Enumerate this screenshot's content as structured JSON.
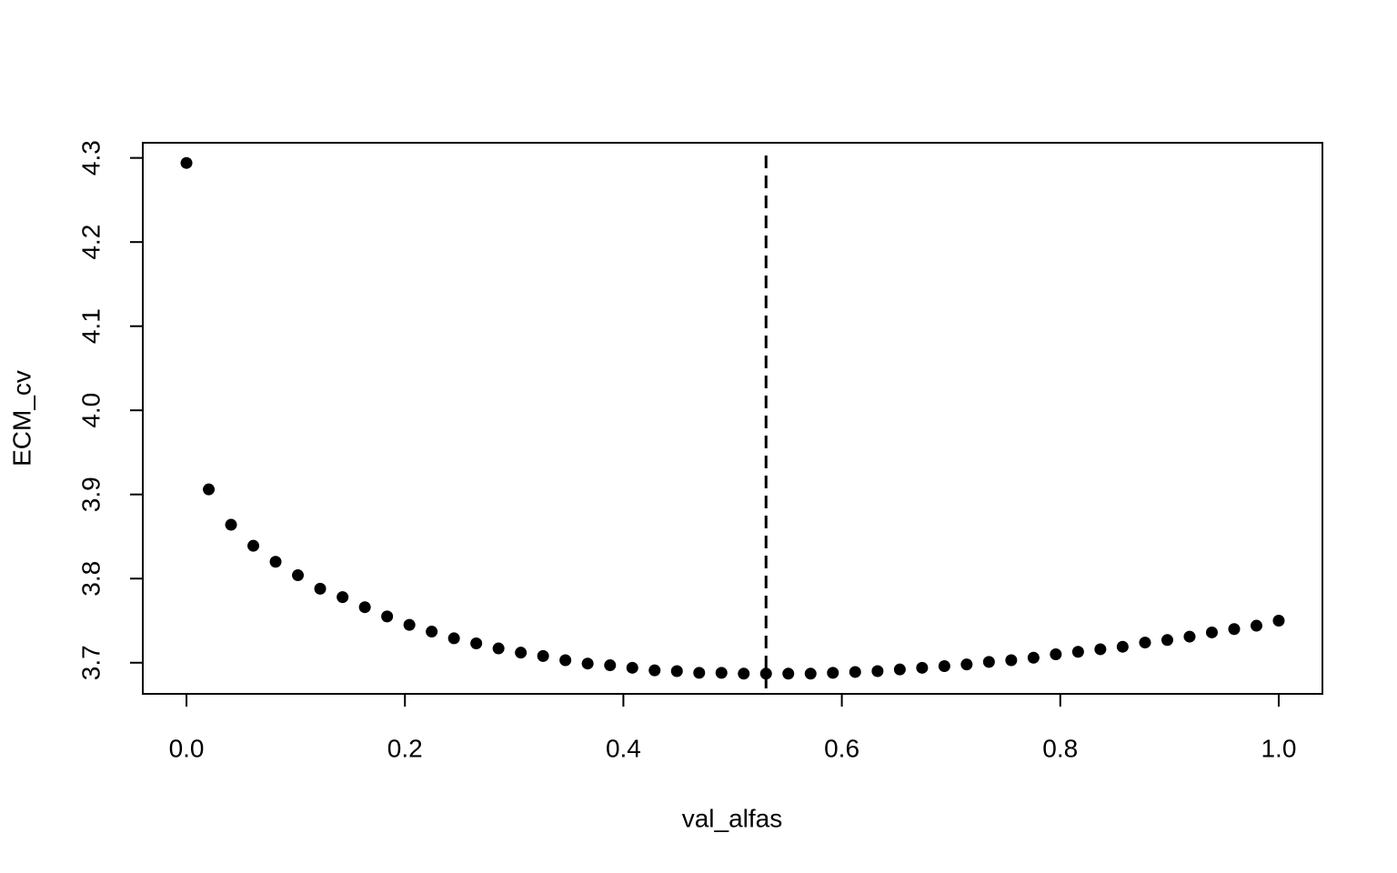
{
  "chart_data": {
    "type": "scatter",
    "x_label": "val_alfas",
    "y_label": "ECM_cv",
    "x": [
      0,
      0.0204,
      0.0408,
      0.0612,
      0.0816,
      0.102,
      0.1224,
      0.1429,
      0.1633,
      0.1837,
      0.2041,
      0.2245,
      0.2449,
      0.2653,
      0.2857,
      0.3061,
      0.3265,
      0.3469,
      0.3673,
      0.3878,
      0.4082,
      0.4286,
      0.449,
      0.4694,
      0.4898,
      0.5102,
      0.5306,
      0.551,
      0.5714,
      0.5918,
      0.6122,
      0.6327,
      0.6531,
      0.6735,
      0.6939,
      0.7143,
      0.7347,
      0.7551,
      0.7755,
      0.7959,
      0.8163,
      0.8367,
      0.8571,
      0.8776,
      0.898,
      0.9184,
      0.9388,
      0.9592,
      0.9796,
      1
    ],
    "values": [
      4.294,
      3.906,
      3.864,
      3.839,
      3.82,
      3.804,
      3.788,
      3.778,
      3.766,
      3.755,
      3.745,
      3.737,
      3.729,
      3.723,
      3.717,
      3.712,
      3.708,
      3.703,
      3.699,
      3.697,
      3.694,
      3.691,
      3.69,
      3.688,
      3.688,
      3.687,
      3.687,
      3.687,
      3.687,
      3.688,
      3.689,
      3.69,
      3.692,
      3.694,
      3.696,
      3.698,
      3.701,
      3.703,
      3.706,
      3.71,
      3.713,
      3.716,
      3.719,
      3.724,
      3.727,
      3.731,
      3.736,
      3.74,
      3.744,
      3.75
    ],
    "color": "#000000",
    "vline": 0.5306,
    "xlim": [
      -0.04,
      1.04
    ],
    "ylim": [
      3.663,
      4.318
    ],
    "xticks": [
      {
        "value": 0,
        "label": "0.0"
      },
      0.2,
      0.4,
      0.6,
      0.8,
      {
        "value": 1,
        "label": "1.0"
      }
    ],
    "yticks": [
      3.7,
      3.8,
      3.9,
      {
        "value": 4,
        "label": "4.0"
      },
      4.1,
      4.2,
      4.3
    ]
  }
}
